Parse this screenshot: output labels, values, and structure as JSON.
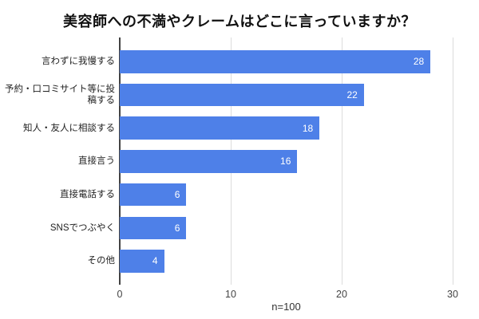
{
  "page": {
    "background": "#ffffff"
  },
  "chart_data": {
    "type": "bar",
    "orientation": "horizontal",
    "title": "美容師への不満やクレームはどこに言っていますか？",
    "categories": [
      "言わずに我慢する",
      "予約・口コミサイト等に投稿する",
      "知人・友人に相談する",
      "直接言う",
      "直接電話する",
      "SNSでつぶやく",
      "その他"
    ],
    "values": [
      28,
      22,
      18,
      16,
      6,
      6,
      4
    ],
    "value_labels": [
      "28",
      "22",
      "18",
      "16",
      "6",
      "6",
      "4"
    ],
    "xlabel": "n=100",
    "x_ticks": [
      "0",
      "10",
      "20",
      "30"
    ],
    "x_tick_values": [
      0,
      10,
      20,
      30
    ],
    "xlim": [
      0,
      30
    ],
    "grid": "vertical-gridlines",
    "legend_position": "none",
    "colors": {
      "bar": "#4e80e8",
      "bar_value_text": "#ffffff",
      "axis_line": "#424242",
      "gridline": "#dcdcdc",
      "tick_text": "#444444",
      "category_text": "#222222",
      "title_text": "#111111",
      "caption_text": "#333333"
    }
  }
}
